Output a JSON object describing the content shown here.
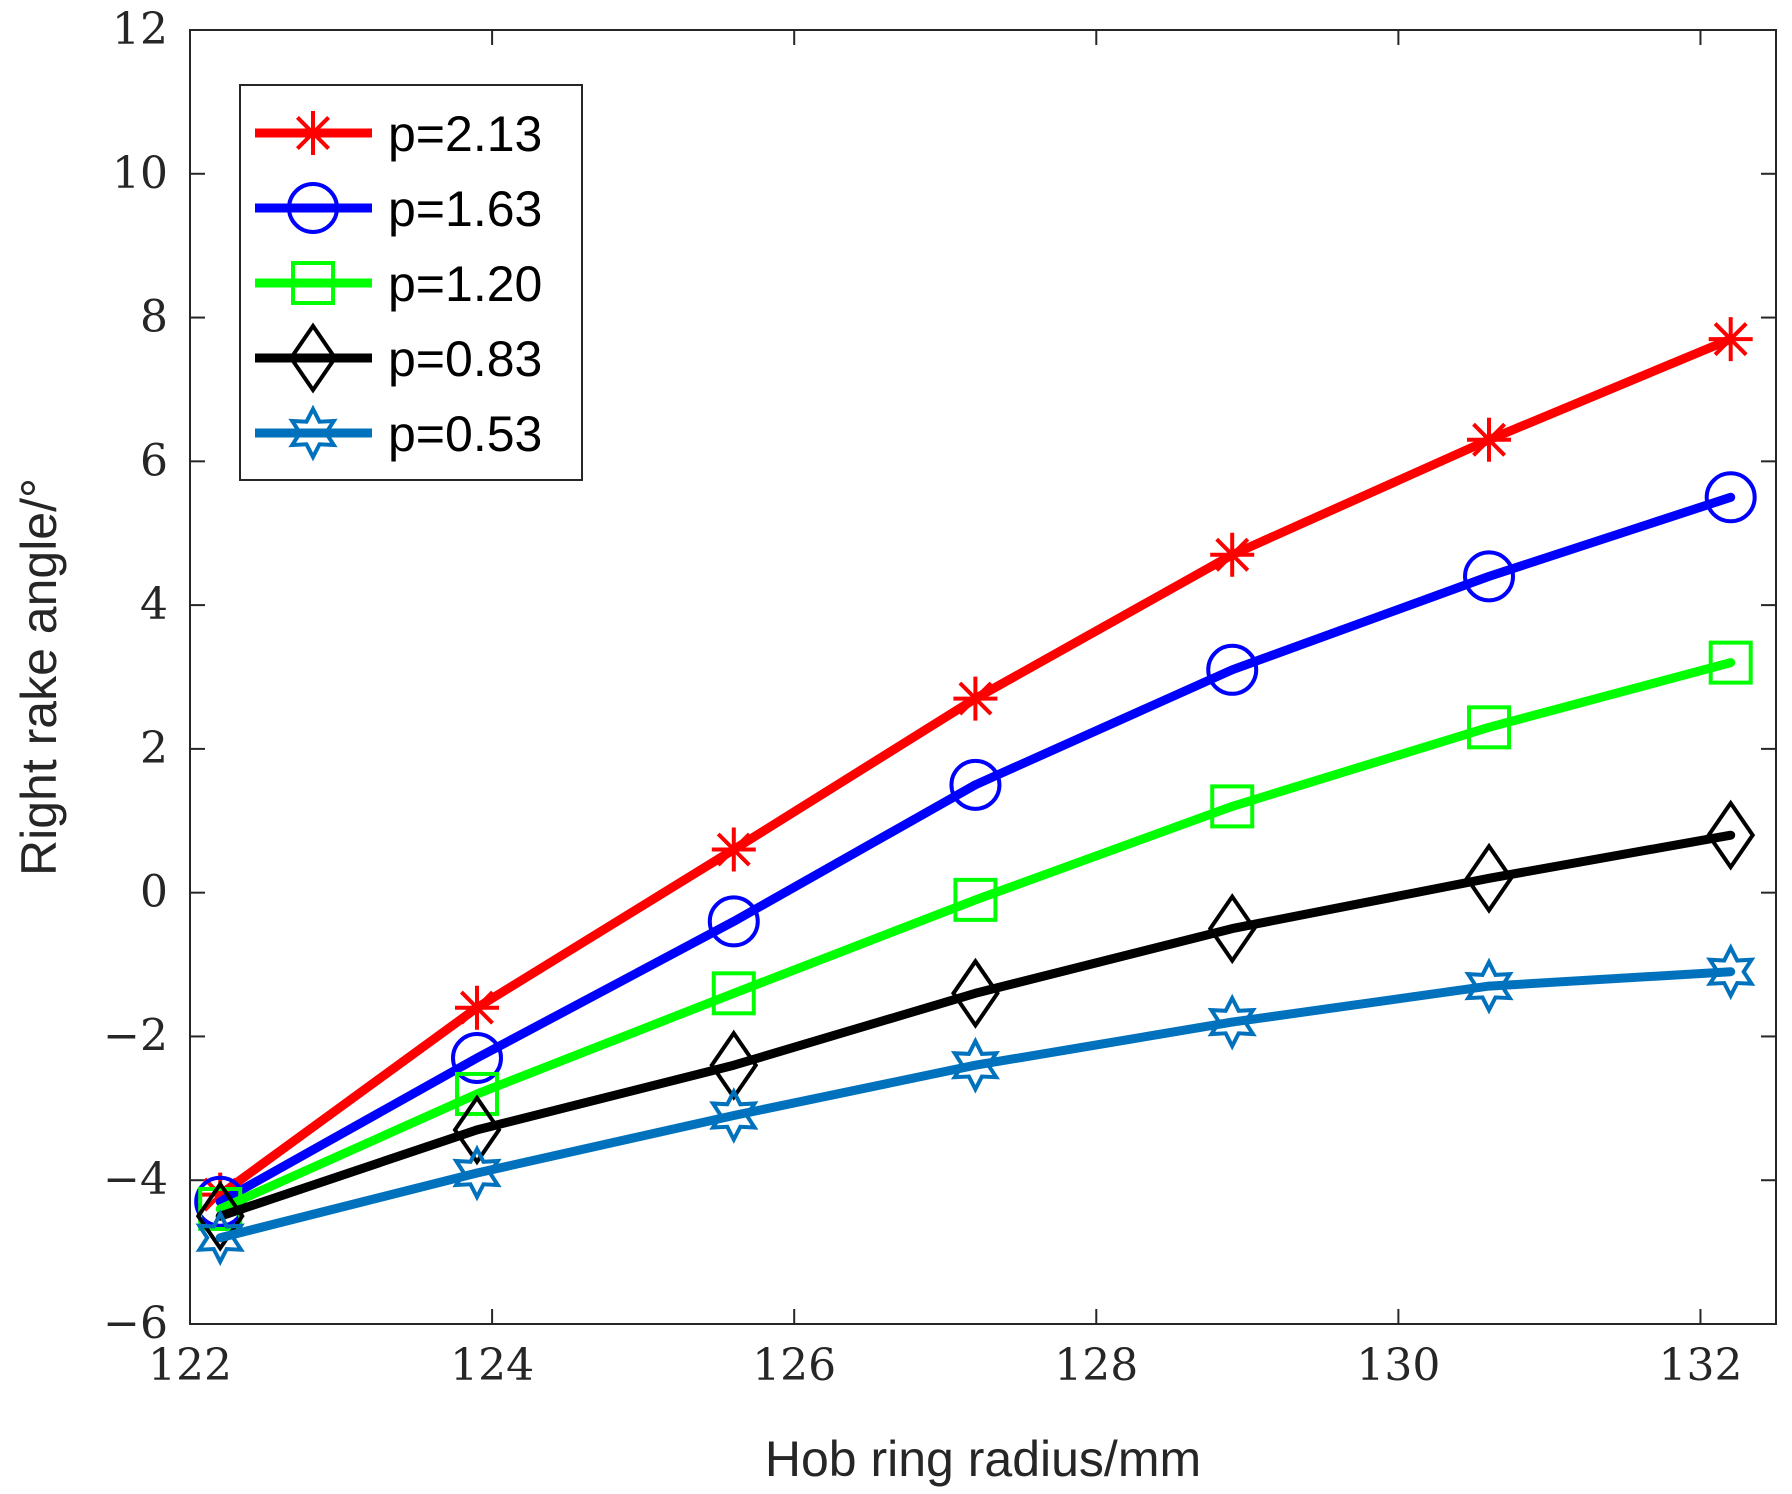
{
  "chart_data": {
    "type": "line",
    "title": "",
    "xlabel": "Hob ring radius/mm",
    "ylabel": "Right rake angle/°",
    "xlim": [
      122,
      132.5
    ],
    "ylim": [
      -6,
      12
    ],
    "xticks": [
      122,
      124,
      126,
      128,
      130,
      132
    ],
    "xtick_labels": [
      "122",
      "124",
      "126",
      "128",
      "130",
      "132"
    ],
    "yticks": [
      -6,
      -4,
      -2,
      0,
      2,
      4,
      6,
      8,
      10,
      12
    ],
    "ytick_labels": [
      "−6",
      "−4",
      "−2",
      "0",
      "2",
      "4",
      "6",
      "8",
      "10",
      "12"
    ],
    "grid": false,
    "legend_position": "top-left",
    "x": [
      122.2,
      123.9,
      125.6,
      127.2,
      128.9,
      130.6,
      132.2
    ],
    "series": [
      {
        "name": "p=2.13",
        "color": "#ff0000",
        "marker": "asterisk",
        "values": [
          -4.2,
          -1.6,
          0.6,
          2.7,
          4.7,
          6.3,
          7.7
        ]
      },
      {
        "name": "p=1.63",
        "color": "#0000ff",
        "marker": "circle",
        "values": [
          -4.3,
          -2.3,
          -0.4,
          1.5,
          3.1,
          4.4,
          5.5
        ]
      },
      {
        "name": "p=1.20",
        "color": "#00ff00",
        "marker": "square",
        "values": [
          -4.4,
          -2.8,
          -1.4,
          -0.1,
          1.2,
          2.3,
          3.2
        ]
      },
      {
        "name": "p=0.83",
        "color": "#000000",
        "marker": "diamond",
        "values": [
          -4.5,
          -3.3,
          -2.4,
          -1.4,
          -0.5,
          0.2,
          0.8
        ]
      },
      {
        "name": "p=0.53",
        "color": "#0072bd",
        "marker": "hexagram",
        "values": [
          -4.8,
          -3.9,
          -3.1,
          -2.4,
          -1.8,
          -1.3,
          -1.1
        ]
      }
    ]
  }
}
